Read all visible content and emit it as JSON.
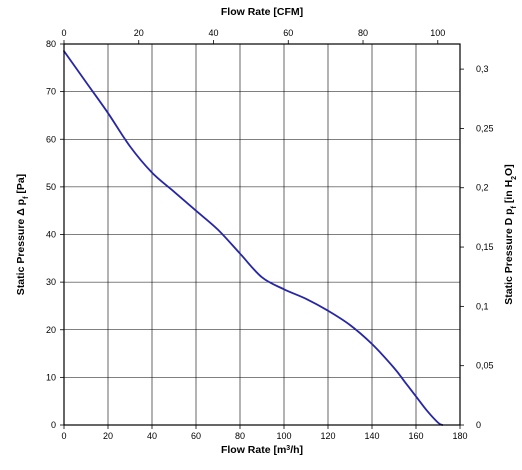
{
  "chart_data": {
    "type": "line",
    "title": "",
    "grid": true,
    "legend": "none",
    "colors": {
      "series": "#2626a8",
      "grid": "#000000",
      "background": "#ffffff"
    },
    "axes": {
      "x_bottom": {
        "label_main": "Flow Rate [m",
        "label_sup": "3",
        "label_end": "/h]",
        "min": 0,
        "max": 180,
        "ticks": [
          0,
          20,
          40,
          60,
          80,
          100,
          120,
          140,
          160,
          180
        ],
        "tick_labels": [
          "0",
          "20",
          "40",
          "60",
          "80",
          "100",
          "120",
          "140",
          "160",
          "180"
        ]
      },
      "x_top": {
        "label": "Flow Rate [CFM]",
        "unit_scale_from_bottom": 0.588578,
        "ticks": [
          0,
          20,
          40,
          60,
          80,
          100
        ],
        "tick_labels": [
          "0",
          "20",
          "40",
          "60",
          "80",
          "100"
        ]
      },
      "y_left": {
        "label_main": "Static Pressure Δ p",
        "label_sub": "f",
        "label_end": " [Pa]",
        "min": 0,
        "max": 80,
        "ticks": [
          0,
          10,
          20,
          30,
          40,
          50,
          60,
          70,
          80
        ],
        "tick_labels": [
          "0",
          "10",
          "20",
          "30",
          "40",
          "50",
          "60",
          "70",
          "80"
        ]
      },
      "y_right": {
        "label_main": "Static Pressure D p",
        "label_sub": "f",
        "label_mid": " [in H",
        "label_sub2": "2",
        "label_end": "O]",
        "unit_scale_from_left": 0.0040146,
        "ticks": [
          0,
          0.05,
          0.1,
          0.15,
          0.2,
          0.25,
          0.3
        ],
        "tick_labels": [
          "0",
          "0,05",
          "0,1",
          "0,15",
          "0,2",
          "0,25",
          "0,3"
        ]
      }
    },
    "series": [
      {
        "x": [
          0,
          10,
          20,
          30,
          40,
          50,
          60,
          70,
          80,
          90,
          100,
          110,
          120,
          130,
          140,
          150,
          155,
          160,
          165,
          170,
          172
        ],
        "y": [
          78.5,
          72,
          65.5,
          58.5,
          53,
          49,
          45,
          41,
          36,
          31,
          28.5,
          26.5,
          24,
          21,
          17,
          12,
          9,
          6,
          3,
          0.5,
          0
        ]
      }
    ]
  }
}
